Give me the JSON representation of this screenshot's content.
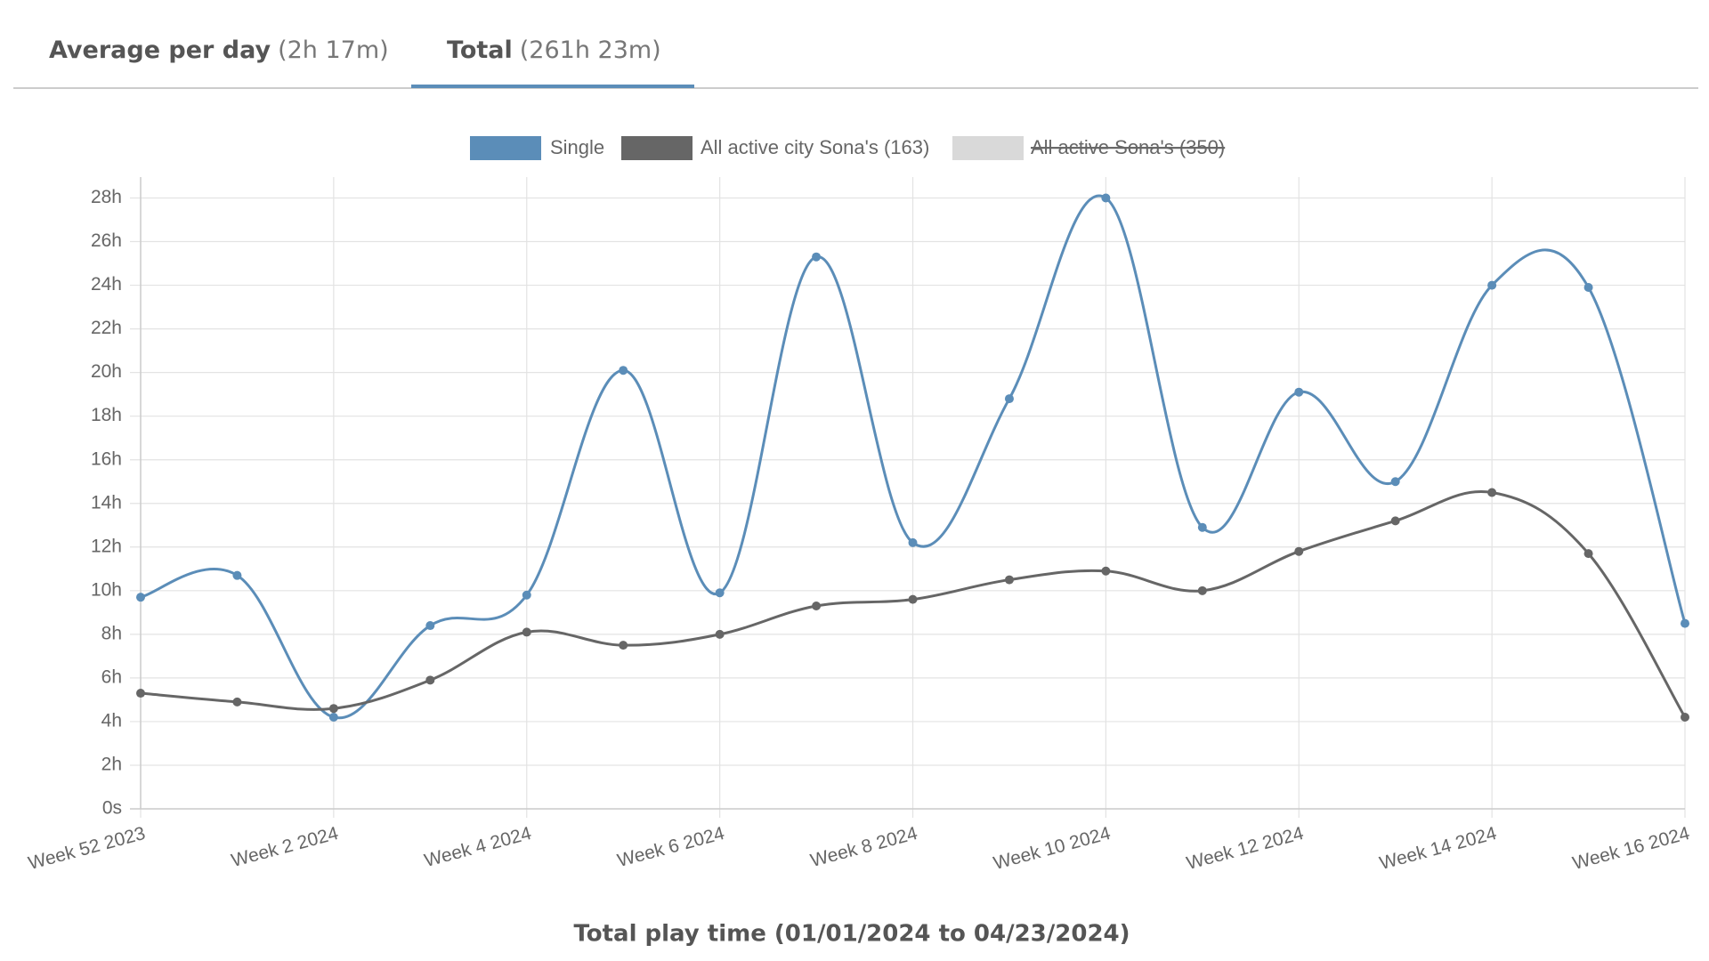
{
  "tabs": [
    {
      "label": "Average per day",
      "detail": "(2h 17m)",
      "active": false
    },
    {
      "label": "Total",
      "detail": "(261h 23m)",
      "active": true
    }
  ],
  "chart_data": {
    "type": "line",
    "x_label": "Total play time (01/01/2024 to 04/23/2024)",
    "categories": [
      "Week 52 2023",
      null,
      "Week 2 2024",
      null,
      "Week 4 2024",
      null,
      "Week 6 2024",
      null,
      "Week 8 2024",
      null,
      "Week 10 2024",
      null,
      "Week 12 2024",
      null,
      "Week 14 2024",
      null,
      "Week 16 2024"
    ],
    "series": [
      {
        "name": "Single",
        "color": "#5b8db8",
        "values": [
          9.7,
          10.7,
          4.2,
          8.4,
          9.8,
          20.1,
          9.9,
          25.3,
          12.2,
          18.8,
          28.0,
          12.9,
          19.1,
          15.0,
          24.0,
          23.9,
          8.5
        ]
      },
      {
        "name": "All active city Sona's (163)",
        "color": "#666666",
        "values": [
          5.3,
          4.9,
          4.6,
          5.9,
          8.1,
          7.5,
          8.0,
          9.3,
          9.6,
          10.5,
          10.9,
          10.0,
          11.8,
          13.2,
          14.5,
          11.7,
          4.2
        ]
      },
      {
        "name": "All active Sona's (350)",
        "color": "#d9d9d9",
        "hidden": true
      }
    ],
    "ylim": [
      0,
      28
    ],
    "yticks": [
      {
        "value": 0,
        "label": "0s"
      },
      {
        "value": 2,
        "label": "2h"
      },
      {
        "value": 4,
        "label": "4h"
      },
      {
        "value": 6,
        "label": "6h"
      },
      {
        "value": 8,
        "label": "8h"
      },
      {
        "value": 10,
        "label": "10h"
      },
      {
        "value": 12,
        "label": "12h"
      },
      {
        "value": 14,
        "label": "14h"
      },
      {
        "value": 16,
        "label": "16h"
      },
      {
        "value": 18,
        "label": "18h"
      },
      {
        "value": 20,
        "label": "20h"
      },
      {
        "value": 22,
        "label": "22h"
      },
      {
        "value": 24,
        "label": "24h"
      },
      {
        "value": 26,
        "label": "26h"
      },
      {
        "value": 28,
        "label": "28h"
      }
    ],
    "grid": true,
    "legend": "top"
  }
}
